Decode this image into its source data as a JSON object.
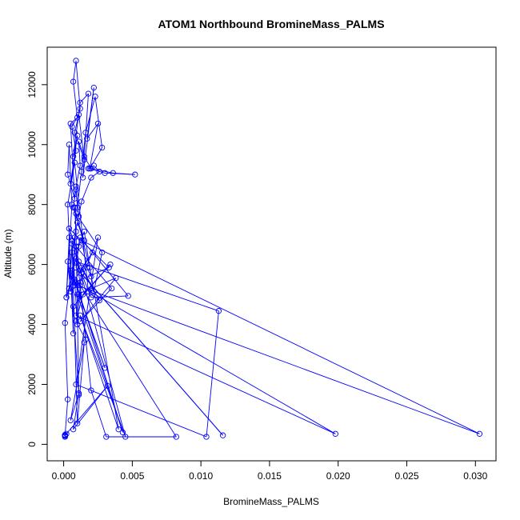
{
  "chart_data": {
    "type": "line",
    "title": "ATOM1 Northbound BromineMass_PALMS",
    "xlabel": "BromineMass_PALMS",
    "ylabel": "Altitude (m)",
    "xlim": [
      -0.0012,
      0.0315
    ],
    "ylim": [
      -550,
      13250
    ],
    "x_ticks": [
      {
        "value": 0.0,
        "label": "0.000"
      },
      {
        "value": 0.005,
        "label": "0.005"
      },
      {
        "value": 0.01,
        "label": "0.010"
      },
      {
        "value": 0.015,
        "label": "0.015"
      },
      {
        "value": 0.02,
        "label": "0.020"
      },
      {
        "value": 0.025,
        "label": "0.025"
      },
      {
        "value": 0.03,
        "label": "0.030"
      }
    ],
    "y_ticks": [
      {
        "value": 0,
        "label": "0"
      },
      {
        "value": 2000,
        "label": "2000"
      },
      {
        "value": 4000,
        "label": "4000"
      },
      {
        "value": 6000,
        "label": "6000"
      },
      {
        "value": 8000,
        "label": "8000"
      },
      {
        "value": 10000,
        "label": "10000"
      },
      {
        "value": 12000,
        "label": "12000"
      }
    ],
    "grid": false,
    "legend": "none",
    "color": "#0000ff",
    "series": [
      {
        "x": [
          0.0001,
          0.0002,
          0.0001,
          0.0003,
          0.0001,
          0.0004,
          0.0002,
          0.0006,
          0.0004,
          0.0003,
          0.0008,
          0.0005,
          0.001,
          0.0007,
          0.0009,
          0.0012,
          0.0008,
          0.0015,
          0.0011,
          0.0006,
          0.0009,
          0.0005,
          0.001,
          0.0007,
          0.0012,
          0.0018,
          0.0014,
          0.0022,
          0.0017,
          0.0025,
          0.0019,
          0.0028,
          0.0023,
          0.0016,
          0.0013,
          0.001,
          0.0009,
          0.0012,
          0.0011,
          0.0015,
          0.002,
          0.0036,
          0.0052,
          0.003,
          0.0018,
          0.0022,
          0.0026,
          0.002,
          0.0013,
          0.0011,
          0.0009,
          0.0007,
          0.0015,
          0.001,
          0.0008,
          0.0006,
          0.0004,
          0.0021,
          0.0012,
          0.0009,
          0.0113,
          0.0104,
          0.0009,
          0.0025,
          0.0012,
          0.0005,
          0.0003,
          0.0007,
          0.0009,
          0.0028,
          0.0022,
          0.0013,
          0.001,
          0.0008,
          0.0006,
          0.0005,
          0.0004,
          0.0002,
          0.0006,
          0.001,
          0.0303,
          0.0013,
          0.0017,
          0.002,
          0.0015,
          0.0011,
          0.0009,
          0.0116,
          0.0013,
          0.002,
          0.0047,
          0.0012,
          0.0009,
          0.0006,
          0.003,
          0.0011,
          0.0009,
          0.0198,
          0.0008,
          0.0033,
          0.0004,
          0.0009,
          0.0006,
          0.0007,
          0.0003,
          0.0008,
          0.0018,
          0.0026,
          0.0011,
          0.0009,
          0.0043,
          0.001,
          0.0038,
          0.0012,
          0.0035,
          0.0009,
          0.002,
          0.0031,
          0.0082,
          0.0012,
          0.0016,
          0.0009,
          0.0014,
          0.0034,
          0.0007,
          0.0011,
          0.0009,
          0.0008,
          0.0019,
          0.004,
          0.0012,
          0.0045,
          0.0006,
          0.001,
          0.0015,
          0.0005,
          0.0011,
          0.0007,
          0.0032,
          0.0001,
          0.0001,
          0.0001,
          0.0001
        ],
        "y": [
          280,
          350,
          300,
          1500,
          4050,
          5200,
          4900,
          8000,
          10000,
          9000,
          8200,
          10700,
          10900,
          12100,
          12800,
          11200,
          10400,
          9500,
          11000,
          10600,
          9800,
          8700,
          10300,
          9600,
          11400,
          11700,
          8900,
          11900,
          10200,
          10700,
          9200,
          9900,
          11600,
          10400,
          9100,
          7900,
          8600,
          9300,
          10100,
          9600,
          9200,
          9050,
          9000,
          9050,
          9200,
          9300,
          9100,
          8900,
          8100,
          7600,
          8500,
          7900,
          6800,
          7400,
          6900,
          6400,
          5200,
          6400,
          5800,
          6100,
          4450,
          250,
          2000,
          6900,
          5400,
          5100,
          6100,
          5300,
          7700,
          6400,
          5100,
          5900,
          4000,
          5500,
          6700,
          5800,
          6900,
          4900,
          5600,
          5300,
          350,
          6800,
          5900,
          5600,
          7100,
          6600,
          5900,
          300,
          5700,
          4900,
          4950,
          6900,
          6200,
          5700,
          2550,
          5000,
          4300,
          350,
          5400,
          5900,
          7200,
          6600,
          5800,
          3700,
          8000,
          9400,
          5100,
          4800,
          6100,
          5400,
          400,
          5000,
          5550,
          4100,
          5200,
          6600,
          1800,
          250,
          250,
          5300,
          3500,
          4100,
          5000,
          6000,
          4600,
          1650,
          7100,
          7900,
          5900,
          500,
          4300,
          250,
          6800,
          700,
          3400,
          800,
          1700,
          500,
          1950,
          300,
          250,
          300,
          320
        ]
      }
    ]
  }
}
